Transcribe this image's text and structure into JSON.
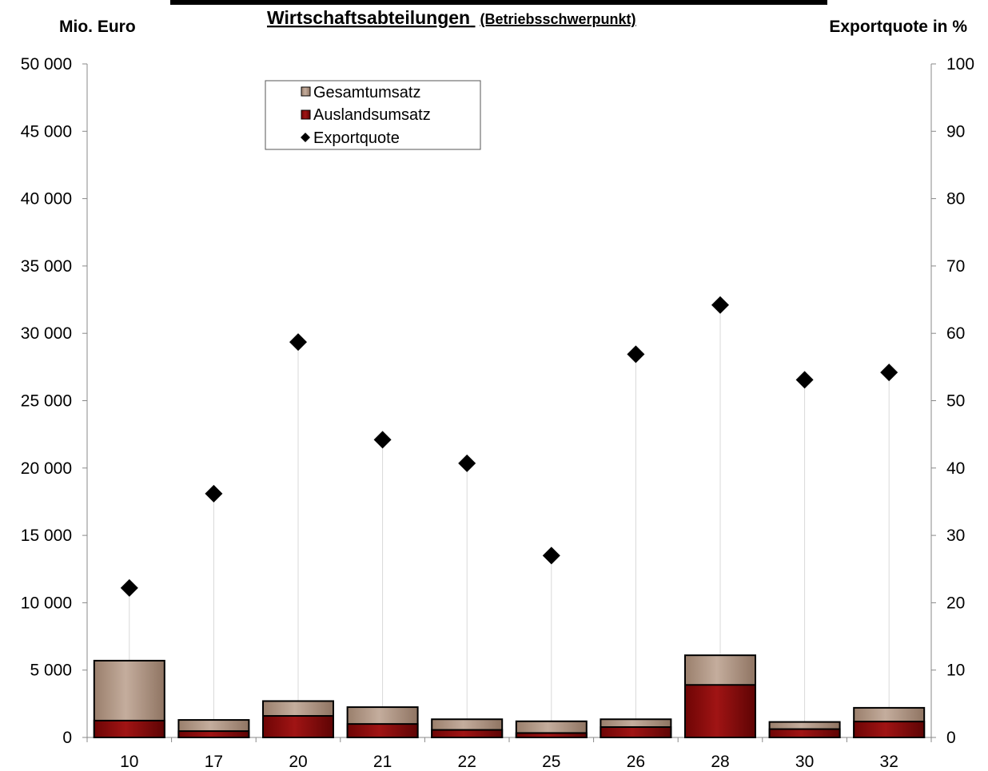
{
  "chart_data": {
    "type": "bar",
    "title": "Wirtschaftsabteilungen",
    "subtitle": "(Betriebsschwerpunkt)",
    "ylabel_left": "Mio. Euro",
    "ylabel_right": "Exportquote in %",
    "ylim_left": [
      0,
      50000
    ],
    "ylim_right": [
      0,
      100
    ],
    "y_ticks_left": [
      "0",
      "5 000",
      "10 000",
      "15 000",
      "20 000",
      "25 000",
      "30 000",
      "35 000",
      "40 000",
      "45 000",
      "50 000"
    ],
    "y_ticks_right": [
      "0",
      "10",
      "20",
      "30",
      "40",
      "50",
      "60",
      "70",
      "80",
      "90",
      "100"
    ],
    "categories": [
      "10",
      "17",
      "20",
      "21",
      "22",
      "25",
      "26",
      "28",
      "30",
      "32"
    ],
    "series": [
      {
        "name": "Gesamtumsatz",
        "axis": "left",
        "values": [
          5700,
          1300,
          2700,
          2250,
          1350,
          1200,
          1350,
          6100,
          1150,
          2200
        ],
        "color": "#b39a88"
      },
      {
        "name": "Auslandsumsatz",
        "axis": "left",
        "values": [
          1250,
          470,
          1600,
          1000,
          560,
          330,
          770,
          3900,
          620,
          1180
        ],
        "color": "#8b0a0a"
      },
      {
        "name": "Exportquote",
        "axis": "right",
        "values": [
          22.2,
          36.2,
          58.7,
          44.2,
          40.7,
          27.0,
          56.9,
          64.2,
          53.1,
          54.2
        ],
        "color": "#000000",
        "marker": "diamond"
      }
    ],
    "legend_position": "top-left",
    "grid": false
  }
}
